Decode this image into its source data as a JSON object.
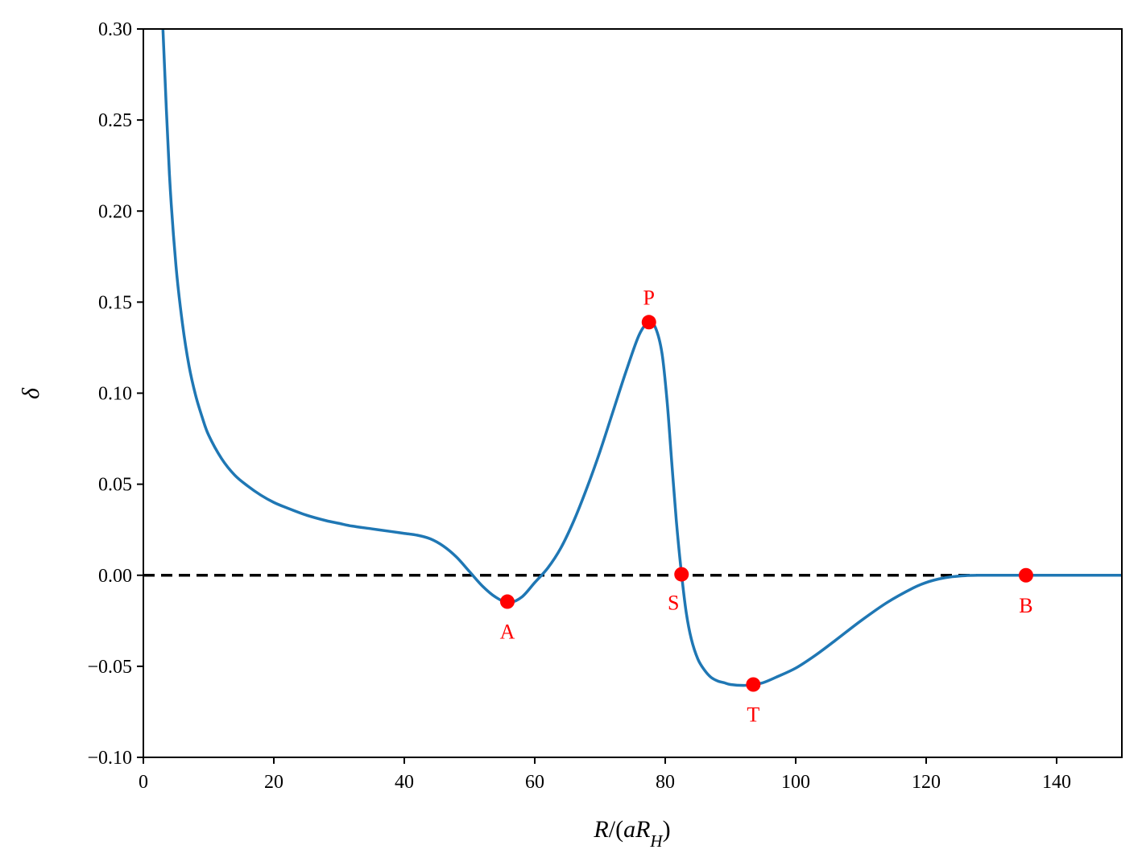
{
  "chart_data": {
    "type": "line",
    "title": "",
    "xlabel": "R/(aR_H)",
    "ylabel": "δ",
    "xlim": [
      0,
      150
    ],
    "ylim": [
      -0.1,
      0.3
    ],
    "x_ticks": [
      0,
      20,
      40,
      60,
      80,
      100,
      120,
      140
    ],
    "y_ticks": [
      -0.1,
      -0.05,
      0.0,
      0.05,
      0.1,
      0.15,
      0.2,
      0.25,
      0.3
    ],
    "x_tick_labels": [
      "0",
      "20",
      "40",
      "60",
      "80",
      "100",
      "120",
      "140"
    ],
    "y_tick_labels": [
      "−0.10",
      "−0.05",
      "0.00",
      "0.05",
      "0.10",
      "0.15",
      "0.20",
      "0.25",
      "0.30"
    ],
    "grid": false,
    "colors": {
      "curve": "#1f77b4",
      "reference": "#000000",
      "points": "#ff0000"
    },
    "series": [
      {
        "x": [
          3,
          4,
          5,
          6,
          7,
          8,
          9,
          10,
          12,
          14,
          16,
          18,
          20,
          22,
          25,
          28,
          30,
          32,
          35,
          38,
          40,
          42,
          44,
          46,
          48,
          50,
          52,
          54,
          56,
          58,
          60,
          62,
          64,
          66,
          68,
          70,
          72,
          74,
          76,
          77.5,
          78.5,
          79.5,
          80.3,
          81,
          81.7,
          82.4,
          83.2,
          84,
          85,
          86,
          87,
          88,
          89,
          90,
          92,
          93.5,
          95,
          97,
          100,
          103,
          106,
          110,
          114,
          118,
          120,
          122,
          124,
          126,
          128,
          130,
          135,
          140,
          145,
          150
        ],
        "y": [
          0.3,
          0.22,
          0.17,
          0.138,
          0.115,
          0.099,
          0.087,
          0.077,
          0.064,
          0.055,
          0.049,
          0.044,
          0.04,
          0.037,
          0.033,
          0.03,
          0.0285,
          0.027,
          0.0255,
          0.024,
          0.023,
          0.022,
          0.02,
          0.016,
          0.01,
          0.002,
          -0.006,
          -0.012,
          -0.015,
          -0.012,
          -0.004,
          0.004,
          0.015,
          0.03,
          0.048,
          0.068,
          0.09,
          0.112,
          0.132,
          0.139,
          0.136,
          0.122,
          0.095,
          0.062,
          0.03,
          0.004,
          -0.02,
          -0.035,
          -0.046,
          -0.052,
          -0.056,
          -0.058,
          -0.059,
          -0.06,
          -0.0605,
          -0.06,
          -0.059,
          -0.056,
          -0.051,
          -0.044,
          -0.036,
          -0.025,
          -0.015,
          -0.007,
          -0.004,
          -0.002,
          -0.0008,
          -0.0002,
          0,
          0,
          0,
          0,
          0,
          0
        ]
      }
    ],
    "reference_line": {
      "y": 0
    },
    "points": [
      {
        "label": "A",
        "x": 55.8,
        "y": -0.0145,
        "label_pos": "below"
      },
      {
        "label": "P",
        "x": 77.5,
        "y": 0.139,
        "label_pos": "above"
      },
      {
        "label": "S",
        "x": 82.5,
        "y": 0.0005,
        "label_pos": "below-left"
      },
      {
        "label": "T",
        "x": 93.5,
        "y": -0.06,
        "label_pos": "below"
      },
      {
        "label": "B",
        "x": 135.3,
        "y": 0.0,
        "label_pos": "below"
      }
    ]
  }
}
